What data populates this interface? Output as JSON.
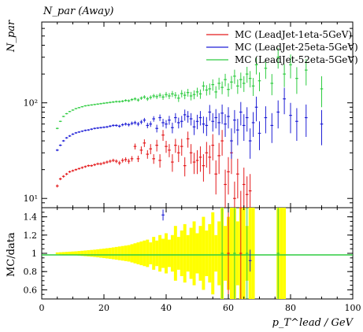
{
  "chart_data": {
    "type": "scatter",
    "title": "N_par (Away)",
    "ylabel": "N_par",
    "ratio_ylabel": "MC/data",
    "xlabel": "p_T^lead / GeV",
    "x_ticks": [
      "0",
      "20",
      "40",
      "60",
      "80",
      "100"
    ],
    "y_ticks": [
      "10¹",
      "10²"
    ],
    "ratio_ticks": [
      "0.6",
      "0.8",
      "1",
      "1.2",
      "1.4"
    ],
    "xlim": [
      0,
      100
    ],
    "ylim": [
      8,
      700
    ],
    "yscale": "log",
    "ratio_ylim": [
      0.5,
      1.5
    ],
    "legend_position": "top-right",
    "series": [
      {
        "name": "MC (LeadJet-1eta-5GeV)",
        "color": "#e41a1c",
        "x": [
          5,
          6,
          7,
          8,
          9,
          10,
          11,
          12,
          13,
          14,
          15,
          16,
          17,
          18,
          19,
          20,
          21,
          22,
          23,
          24,
          25,
          26,
          27,
          28,
          29,
          30,
          31,
          32,
          33,
          34,
          35,
          36,
          37,
          38,
          39,
          40,
          41,
          42,
          43,
          44,
          45,
          46,
          47,
          48,
          49,
          50,
          51,
          52,
          53,
          54,
          55,
          56,
          57,
          58,
          59,
          60,
          61,
          62,
          63,
          64,
          65,
          66,
          67
        ],
        "y": [
          13.5,
          16,
          17,
          18,
          19,
          19.5,
          20,
          20.5,
          21,
          21.5,
          22,
          22,
          22.5,
          23,
          23,
          23.5,
          24,
          24.5,
          25,
          24.5,
          23.5,
          25,
          25.5,
          24.5,
          26,
          35,
          26,
          32,
          38,
          29,
          33,
          26,
          36,
          25,
          46,
          35,
          32,
          24,
          36,
          30,
          35,
          22,
          42,
          30,
          24,
          25,
          27,
          22,
          30,
          27,
          36,
          18,
          28,
          40,
          14,
          19,
          30,
          10,
          18,
          8,
          14,
          11,
          12
        ],
        "err": [
          0.5,
          0.5,
          0.5,
          0.5,
          0.5,
          0.5,
          0.5,
          0.5,
          0.6,
          0.6,
          0.6,
          0.6,
          0.7,
          0.7,
          0.8,
          0.8,
          0.9,
          1,
          1,
          1.1,
          1.2,
          1.3,
          1.4,
          1.5,
          1.7,
          2.5,
          2,
          3,
          3.5,
          3,
          4,
          3,
          5,
          4,
          6,
          5,
          5,
          5,
          6,
          6,
          7,
          5,
          8,
          7,
          6,
          7,
          8,
          7,
          9,
          9,
          11,
          7,
          10,
          12,
          6,
          8,
          12,
          5,
          8,
          4,
          7,
          6,
          6
        ]
      },
      {
        "name": "MC (LeadJet-25eta-5GeV)",
        "color": "#1f1fd6",
        "x": [
          5,
          6,
          7,
          8,
          9,
          10,
          11,
          12,
          13,
          14,
          15,
          16,
          17,
          18,
          19,
          20,
          21,
          22,
          23,
          24,
          25,
          26,
          27,
          28,
          29,
          30,
          31,
          32,
          33,
          34,
          35,
          36,
          37,
          38,
          39,
          40,
          41,
          42,
          43,
          44,
          45,
          46,
          47,
          48,
          49,
          50,
          51,
          52,
          53,
          54,
          55,
          56,
          57,
          58,
          59,
          60,
          61,
          62,
          63,
          64,
          65,
          66,
          67,
          68,
          69,
          70,
          72,
          74,
          76,
          78,
          80,
          82,
          85,
          90
        ],
        "y": [
          32,
          36,
          40,
          43,
          45,
          47,
          48.5,
          49.5,
          50.5,
          51.5,
          52,
          53,
          54,
          54.5,
          55,
          55.5,
          56,
          57,
          58,
          58,
          57,
          59,
          60,
          59,
          61,
          62,
          60,
          63,
          66,
          58,
          60,
          68,
          54,
          70,
          62,
          60,
          66,
          55,
          70,
          62,
          64,
          75,
          72,
          68,
          56,
          64,
          70,
          60,
          58,
          80,
          64,
          70,
          62,
          78,
          60,
          72,
          40,
          66,
          52,
          80,
          58,
          70,
          40,
          62,
          90,
          48,
          70,
          58,
          80,
          110,
          74,
          64,
          70,
          60
        ],
        "err": [
          0.8,
          0.8,
          0.9,
          0.9,
          1,
          1,
          1,
          1,
          1,
          1.1,
          1.1,
          1.2,
          1.2,
          1.3,
          1.3,
          1.4,
          1.5,
          1.6,
          1.7,
          1.8,
          2,
          2.1,
          2.2,
          2.4,
          2.6,
          2.8,
          3,
          3.2,
          3.5,
          3.8,
          4,
          4.5,
          5,
          5.5,
          6,
          6,
          7,
          7,
          8,
          8,
          9,
          10,
          10,
          10,
          10,
          11,
          12,
          12,
          13,
          15,
          14,
          16,
          16,
          18,
          16,
          18,
          14,
          18,
          16,
          22,
          18,
          20,
          14,
          18,
          26,
          16,
          22,
          20,
          26,
          34,
          26,
          24,
          26,
          24
        ]
      },
      {
        "name": "MC (LeadJet-52eta-5GeV)",
        "color": "#2ecc40",
        "x": [
          5,
          6,
          7,
          8,
          9,
          10,
          11,
          12,
          13,
          14,
          15,
          16,
          17,
          18,
          19,
          20,
          21,
          22,
          23,
          24,
          25,
          26,
          27,
          28,
          29,
          30,
          31,
          32,
          33,
          34,
          35,
          36,
          37,
          38,
          39,
          40,
          41,
          42,
          43,
          44,
          45,
          46,
          47,
          48,
          49,
          50,
          51,
          52,
          53,
          54,
          55,
          56,
          57,
          58,
          59,
          60,
          61,
          62,
          63,
          64,
          65,
          66,
          67,
          68,
          69,
          70,
          72,
          74,
          76,
          78,
          80,
          82,
          85,
          90
        ],
        "y": [
          54,
          64,
          72,
          77,
          81,
          84,
          87,
          89,
          91,
          93,
          94,
          95,
          96,
          97,
          98,
          99,
          100,
          101,
          102,
          103,
          103,
          104,
          106,
          105,
          108,
          110,
          107,
          112,
          115,
          110,
          114,
          118,
          116,
          120,
          115,
          122,
          118,
          124,
          120,
          112,
          125,
          120,
          128,
          118,
          122,
          130,
          124,
          150,
          136,
          140,
          155,
          130,
          160,
          145,
          175,
          138,
          165,
          190,
          150,
          175,
          160,
          200,
          180,
          150,
          250,
          170,
          230,
          160,
          300,
          200,
          250,
          180,
          220,
          140
        ],
        "err": [
          1,
          1,
          1.1,
          1.2,
          1.2,
          1.3,
          1.3,
          1.4,
          1.4,
          1.5,
          1.5,
          1.6,
          1.7,
          1.8,
          1.9,
          2,
          2.1,
          2.2,
          2.4,
          2.5,
          2.7,
          2.9,
          3.1,
          3.3,
          3.6,
          4,
          4.2,
          4.6,
          5,
          5.2,
          5.6,
          6,
          6.5,
          7,
          7.5,
          8,
          8.5,
          9,
          9.5,
          10,
          11,
          11,
          12,
          12,
          13,
          14,
          14,
          17,
          17,
          19,
          21,
          19,
          23,
          22,
          26,
          22,
          26,
          32,
          26,
          32,
          30,
          38,
          35,
          32,
          52,
          38,
          52,
          40,
          72,
          54,
          70,
          56,
          68,
          50
        ]
      }
    ],
    "ratio_band": {
      "color": "#ffff00",
      "x": [
        5,
        6,
        7,
        8,
        9,
        10,
        11,
        12,
        13,
        14,
        15,
        16,
        17,
        18,
        19,
        20,
        21,
        22,
        23,
        24,
        25,
        26,
        27,
        28,
        29,
        30,
        31,
        32,
        33,
        34,
        35,
        36,
        37,
        38,
        39,
        40,
        41,
        42,
        43,
        44,
        45,
        46,
        47,
        48,
        49,
        50,
        51,
        52,
        53,
        54,
        55,
        56,
        57,
        58,
        59,
        60,
        61,
        62,
        63,
        64,
        65,
        66,
        67,
        68,
        76,
        77,
        78
      ],
      "half_width": [
        0.01,
        0.012,
        0.014,
        0.016,
        0.018,
        0.02,
        0.022,
        0.025,
        0.028,
        0.031,
        0.034,
        0.037,
        0.04,
        0.044,
        0.048,
        0.052,
        0.056,
        0.06,
        0.065,
        0.07,
        0.075,
        0.08,
        0.085,
        0.09,
        0.1,
        0.11,
        0.12,
        0.13,
        0.14,
        0.15,
        0.12,
        0.18,
        0.14,
        0.2,
        0.16,
        0.22,
        0.15,
        0.2,
        0.3,
        0.18,
        0.25,
        0.32,
        0.2,
        0.28,
        0.35,
        0.22,
        0.3,
        0.4,
        0.25,
        0.32,
        0.45,
        0.2,
        0.35,
        0.5,
        0.3,
        0.4,
        0.5,
        0.5,
        0.35,
        0.5,
        0.5,
        0.3,
        0.5,
        0.5,
        0.5,
        0.5,
        0.5
      ]
    },
    "ratio_outliers": [
      {
        "x": 39,
        "y": 1.42,
        "err": 0.06,
        "color": "#1f1fd6"
      },
      {
        "x": 67,
        "y": 0.92,
        "err": 0.12,
        "color": "#1f1fd6"
      },
      {
        "x": 58,
        "y": 1.0,
        "err": 0.5,
        "color": "#2ecc40"
      },
      {
        "x": 62,
        "y": 1.0,
        "err": 0.5,
        "color": "#2ecc40"
      },
      {
        "x": 66,
        "y": 1.0,
        "err": 0.5,
        "color": "#2ecc40"
      },
      {
        "x": 76,
        "y": 1.0,
        "err": 0.5,
        "color": "#2ecc40"
      },
      {
        "x": 60,
        "y": 1.0,
        "err": 0.5,
        "color": "#e41a1c"
      },
      {
        "x": 64,
        "y": 1.0,
        "err": 0.5,
        "color": "#e41a1c"
      }
    ]
  }
}
